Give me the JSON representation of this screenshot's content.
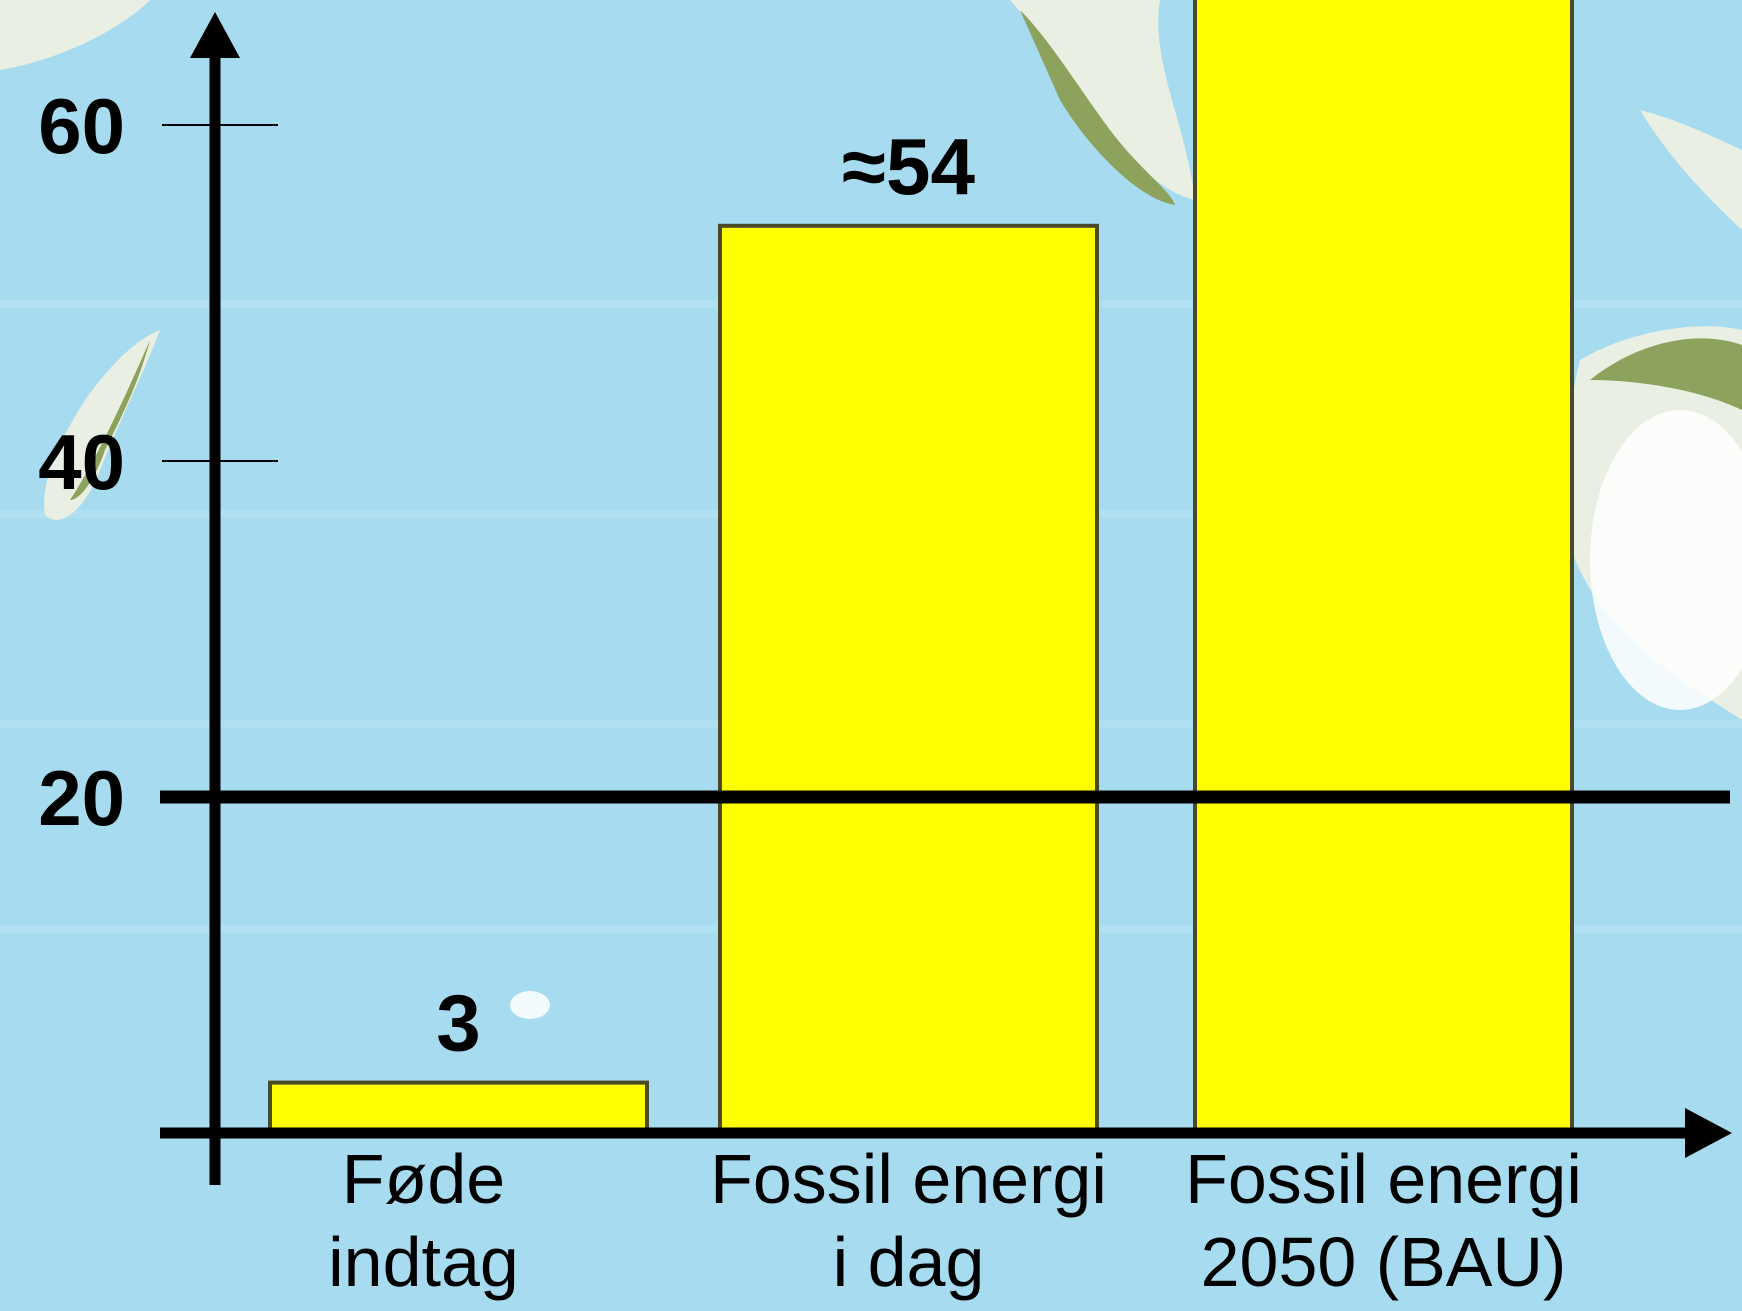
{
  "chart_data": {
    "type": "bar",
    "categories": [
      [
        "Føde",
        "indtag"
      ],
      [
        "Fossil energi",
        "i dag"
      ],
      [
        "Fossil energi",
        "2050 (BAU)"
      ]
    ],
    "values": [
      3,
      54,
      70
    ],
    "data_labels": [
      "3",
      "≈54",
      ""
    ],
    "bar_color": "#ffff00",
    "yticks": [
      {
        "value": 60,
        "label": "60"
      },
      {
        "value": 40,
        "label": "40"
      },
      {
        "value": 20,
        "label": "20"
      }
    ],
    "reference_line": 20,
    "ylim": [
      0,
      70
    ],
    "title": "",
    "xlabel": "",
    "ylabel": "",
    "grid": false,
    "background": "world map (ocean blue)"
  }
}
